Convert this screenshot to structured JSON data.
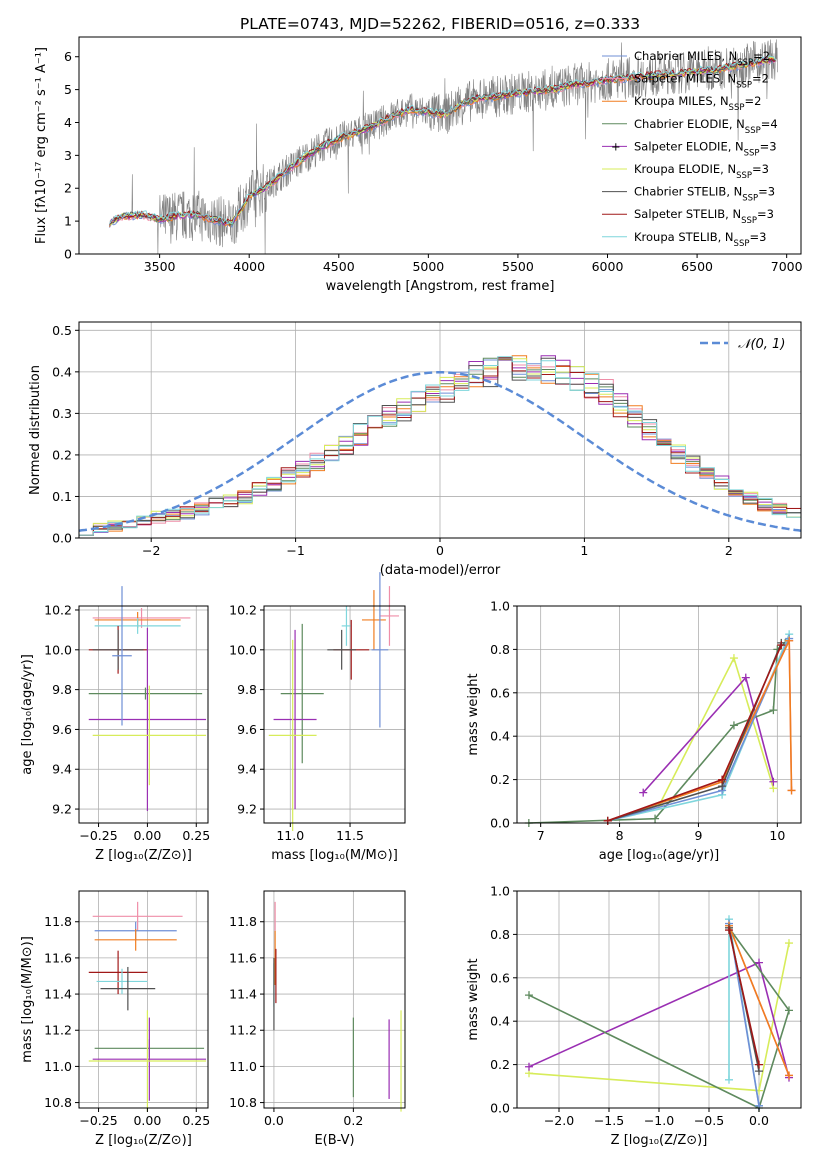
{
  "figure": {
    "title": "PLATE=0743, MJD=52262, FIBERID=0516, z=0.333"
  },
  "chart_data": [
    {
      "id": "spectrum",
      "type": "line",
      "xlabel": "wavelength [Angstrom, rest frame]",
      "ylabel": "Flux [fλ10⁻¹⁷ erg cm⁻² s⁻¹ A⁻¹]",
      "xlim": [
        3050,
        7080
      ],
      "ylim": [
        0,
        6.6
      ],
      "xticks": [
        3500,
        4000,
        4500,
        5000,
        5500,
        6000,
        6500,
        7000
      ],
      "yticks": [
        0,
        1,
        2,
        3,
        4,
        5,
        6
      ],
      "data_color": "#808080",
      "continuum": {
        "x": [
          3220,
          3300,
          3400,
          3500,
          3600,
          3700,
          3800,
          3900,
          4000,
          4100,
          4200,
          4300,
          4400,
          4500,
          4600,
          4700,
          4800,
          4900,
          5000,
          5100,
          5200,
          5300,
          5400,
          5500,
          5600,
          5700,
          5800,
          5900,
          6000,
          6100,
          6200,
          6300,
          6400,
          6500,
          6600,
          6700,
          6800,
          6900
        ],
        "y": [
          0.95,
          1.15,
          1.2,
          1.05,
          1.15,
          1.2,
          1.05,
          0.9,
          1.75,
          2.05,
          2.5,
          2.9,
          3.25,
          3.5,
          3.7,
          3.9,
          4.2,
          4.4,
          4.3,
          4.25,
          4.6,
          4.75,
          4.8,
          4.9,
          4.95,
          5.0,
          5.15,
          5.2,
          5.3,
          5.35,
          5.4,
          5.45,
          5.5,
          5.55,
          5.6,
          5.7,
          5.8,
          5.9
        ]
      },
      "legend": [
        {
          "name": "Chabrier MILES, N",
          "sub": "SSP",
          "n": "=2",
          "color": "#6f8fd6"
        },
        {
          "name": "Salpeter MILES, N",
          "sub": "SSP",
          "n": "=2",
          "color": "#ef8ea8"
        },
        {
          "name": "Kroupa MILES, N",
          "sub": "SSP",
          "n": "=2",
          "color": "#f07d20"
        },
        {
          "name": "Chabrier ELODIE, N",
          "sub": "SSP",
          "n": "=4",
          "color": "#5e8a5e"
        },
        {
          "name": "Salpeter ELODIE, N",
          "sub": "SSP",
          "n": "=3",
          "color": "#9a2fb3"
        },
        {
          "name": "Kroupa ELODIE, N",
          "sub": "SSP",
          "n": "=3",
          "color": "#d7ec5a"
        },
        {
          "name": "Chabrier STELIB, N",
          "sub": "SSP",
          "n": "=3",
          "color": "#505050"
        },
        {
          "name": "Salpeter STELIB, N",
          "sub": "SSP",
          "n": "=3",
          "color": "#a01818"
        },
        {
          "name": "Kroupa STELIB, N",
          "sub": "SSP",
          "n": "=3",
          "color": "#7fd6dc"
        }
      ]
    },
    {
      "id": "residuals",
      "type": "histogram",
      "xlabel": "(data-model)/error",
      "ylabel": "Normed distribution",
      "xlim": [
        -2.5,
        2.5
      ],
      "ylim": [
        0,
        0.52
      ],
      "xticks": [
        -2,
        -1,
        0,
        1,
        2
      ],
      "yticks": [
        0.0,
        0.1,
        0.2,
        0.3,
        0.4,
        0.5
      ],
      "legend_label": "𝒩(0, 1)",
      "gauss_color": "#5b8bd6",
      "bin_width": 0.1,
      "envelope": [
        0.02,
        0.025,
        0.03,
        0.035,
        0.04,
        0.05,
        0.055,
        0.06,
        0.07,
        0.08,
        0.09,
        0.1,
        0.115,
        0.13,
        0.15,
        0.165,
        0.185,
        0.2,
        0.225,
        0.25,
        0.27,
        0.29,
        0.31,
        0.33,
        0.345,
        0.36,
        0.375,
        0.39,
        0.4,
        0.41,
        0.415,
        0.41,
        0.405,
        0.4,
        0.39,
        0.37,
        0.35,
        0.32,
        0.29,
        0.26,
        0.23,
        0.2,
        0.175,
        0.15,
        0.13,
        0.11,
        0.095,
        0.08,
        0.07,
        0.06
      ]
    },
    {
      "id": "age-vs-z",
      "type": "scatter",
      "xlabel": "Z [log₁₀(Z/Z⊙)]",
      "ylabel": "age  [log₁₀(age/yr)]",
      "xlim": [
        -0.35,
        0.31
      ],
      "ylim": [
        9.13,
        10.22
      ],
      "xticks": [
        -0.25,
        0.0,
        0.25
      ],
      "yticks": [
        9.2,
        9.4,
        9.6,
        9.8,
        10.0,
        10.2
      ],
      "points": [
        {
          "x": -0.03,
          "y": 10.16,
          "xerr": 0.25,
          "yerr": 0.05,
          "color": "#ef8ea8"
        },
        {
          "x": -0.05,
          "y": 10.15,
          "xerr": 0.22,
          "yerr": 0.04,
          "color": "#f07d20"
        },
        {
          "x": -0.05,
          "y": 10.12,
          "xerr": 0.22,
          "yerr": 0.04,
          "color": "#7fd6dc"
        },
        {
          "x": -0.15,
          "y": 10.0,
          "xerr": 0.15,
          "yerr": 0.12,
          "color": "#a01818"
        },
        {
          "x": -0.15,
          "y": 10.0,
          "xerr": 0.13,
          "yerr": 0.1,
          "color": "#505050"
        },
        {
          "x": -0.01,
          "y": 9.78,
          "xerr": 0.29,
          "yerr": 0.03,
          "color": "#5e8a5e"
        },
        {
          "x": 0.0,
          "y": 9.65,
          "xerr": 0.3,
          "yerr": 0.46,
          "color": "#9a2fb3"
        },
        {
          "x": 0.01,
          "y": 9.57,
          "xerr": 0.29,
          "yerr": 0.25,
          "color": "#d7ec5a"
        },
        {
          "x": -0.13,
          "y": 9.97,
          "xerr": 0.05,
          "yerr": 0.35,
          "color": "#6f8fd6"
        }
      ]
    },
    {
      "id": "age-vs-mass",
      "type": "scatter",
      "xlabel": "mass [log₁₀(M/M⊙)]",
      "ylabel": "",
      "xlim": [
        10.78,
        11.96
      ],
      "ylim": [
        9.13,
        10.22
      ],
      "xticks": [
        11.0,
        11.5
      ],
      "yticks": [
        9.2,
        9.4,
        9.6,
        9.8,
        10.0,
        10.2
      ],
      "points": [
        {
          "x": 11.83,
          "y": 10.17,
          "xerr": 0.08,
          "yerr": 0.15,
          "color": "#ef8ea8"
        },
        {
          "x": 11.7,
          "y": 10.15,
          "xerr": 0.1,
          "yerr": 0.15,
          "color": "#f07d20"
        },
        {
          "x": 11.75,
          "y": 10.0,
          "xerr": 0.07,
          "yerr": 0.39,
          "color": "#6f8fd6"
        },
        {
          "x": 11.47,
          "y": 10.12,
          "xerr": 0.04,
          "yerr": 0.1,
          "color": "#7fd6dc"
        },
        {
          "x": 11.51,
          "y": 10.0,
          "xerr": 0.15,
          "yerr": 0.15,
          "color": "#a01818"
        },
        {
          "x": 11.43,
          "y": 10.0,
          "xerr": 0.12,
          "yerr": 0.1,
          "color": "#505050"
        },
        {
          "x": 11.1,
          "y": 9.78,
          "xerr": 0.18,
          "yerr": 0.35,
          "color": "#5e8a5e"
        },
        {
          "x": 11.04,
          "y": 9.65,
          "xerr": 0.18,
          "yerr": 0.45,
          "color": "#9a2fb3"
        },
        {
          "x": 11.02,
          "y": 9.57,
          "xerr": 0.2,
          "yerr": 0.48,
          "color": "#d7ec5a"
        }
      ]
    },
    {
      "id": "weight-vs-age",
      "type": "line",
      "xlabel": "age  [log₁₀(age/yr)]",
      "ylabel": "mass weight",
      "xlim": [
        6.7,
        10.3
      ],
      "ylim": [
        0,
        1.0
      ],
      "xticks": [
        7,
        8,
        9,
        10
      ],
      "yticks": [
        0.0,
        0.2,
        0.4,
        0.6,
        0.8,
        1.0
      ],
      "series": [
        {
          "color": "#d7ec5a",
          "x": [
            8.5,
            9.45,
            9.95
          ],
          "y": [
            0.08,
            0.76,
            0.16
          ]
        },
        {
          "color": "#9a2fb3",
          "x": [
            8.3,
            9.6,
            9.95
          ],
          "y": [
            0.14,
            0.67,
            0.19
          ]
        },
        {
          "color": "#5e8a5e",
          "x": [
            6.85,
            8.45,
            9.45,
            9.95,
            10.0,
            10.1
          ],
          "y": [
            0.0,
            0.02,
            0.45,
            0.52,
            0.8,
            0.83
          ]
        },
        {
          "color": "#7fd6dc",
          "x": [
            7.85,
            9.3,
            10.15
          ],
          "y": [
            0.01,
            0.13,
            0.87
          ]
        },
        {
          "color": "#6f8fd6",
          "x": [
            7.85,
            9.3,
            10.15
          ],
          "y": [
            0.01,
            0.15,
            0.85
          ]
        },
        {
          "color": "#ef8ea8",
          "x": [
            7.85,
            9.3,
            10.15,
            10.18
          ],
          "y": [
            0.01,
            0.2,
            0.84,
            0.15
          ]
        },
        {
          "color": "#f07d20",
          "x": [
            7.85,
            9.3,
            10.15,
            10.18
          ],
          "y": [
            0.01,
            0.19,
            0.84,
            0.15
          ]
        },
        {
          "color": "#505050",
          "x": [
            7.85,
            9.3,
            10.05
          ],
          "y": [
            0.01,
            0.17,
            0.83
          ]
        },
        {
          "color": "#a01818",
          "x": [
            7.85,
            9.3,
            10.05
          ],
          "y": [
            0.01,
            0.2,
            0.82
          ]
        }
      ]
    },
    {
      "id": "mass-vs-z",
      "type": "scatter",
      "xlabel": "Z [log₁₀(Z/Z⊙)]",
      "ylabel": "mass [log₁₀(M/M⊙)]",
      "xlim": [
        -0.35,
        0.31
      ],
      "ylim": [
        10.77,
        11.97
      ],
      "xticks": [
        -0.25,
        0.0,
        0.25
      ],
      "yticks": [
        10.8,
        11.0,
        11.2,
        11.4,
        11.6,
        11.8
      ],
      "points": [
        {
          "x": -0.05,
          "y": 11.83,
          "xerr": 0.23,
          "yerr": 0.08,
          "color": "#ef8ea8"
        },
        {
          "x": -0.06,
          "y": 11.75,
          "xerr": 0.21,
          "yerr": 0.05,
          "color": "#6f8fd6"
        },
        {
          "x": -0.06,
          "y": 11.7,
          "xerr": 0.21,
          "yerr": 0.06,
          "color": "#f07d20"
        },
        {
          "x": -0.15,
          "y": 11.52,
          "xerr": 0.15,
          "yerr": 0.12,
          "color": "#a01818"
        },
        {
          "x": -0.13,
          "y": 11.47,
          "xerr": 0.13,
          "yerr": 0.07,
          "color": "#7fd6dc"
        },
        {
          "x": -0.1,
          "y": 11.43,
          "xerr": 0.14,
          "yerr": 0.12,
          "color": "#505050"
        },
        {
          "x": 0.01,
          "y": 11.1,
          "xerr": 0.28,
          "yerr": 0.05,
          "color": "#5e8a5e"
        },
        {
          "x": 0.01,
          "y": 11.04,
          "xerr": 0.29,
          "yerr": 0.23,
          "color": "#9a2fb3"
        },
        {
          "x": 0.0,
          "y": 11.03,
          "xerr": 0.3,
          "yerr": 0.28,
          "color": "#d7ec5a"
        }
      ]
    },
    {
      "id": "mass-vs-ebv",
      "type": "scatter",
      "xlabel": "E(B-V)",
      "ylabel": "",
      "xlim": [
        -0.025,
        0.33
      ],
      "ylim": [
        10.77,
        11.97
      ],
      "xticks": [
        0.0,
        0.2
      ],
      "yticks": [
        10.8,
        11.0,
        11.2,
        11.4,
        11.6,
        11.8
      ],
      "points": [
        {
          "x": 0.003,
          "y": 11.83,
          "xerr": 0.0,
          "yerr": 0.08,
          "color": "#ef8ea8"
        },
        {
          "x": 0.003,
          "y": 11.6,
          "xerr": 0.0,
          "yerr": 0.15,
          "color": "#f07d20"
        },
        {
          "x": 0.005,
          "y": 11.5,
          "xerr": 0.0,
          "yerr": 0.15,
          "color": "#a01818"
        },
        {
          "x": 0.0,
          "y": 11.45,
          "xerr": 0.0,
          "yerr": 0.12,
          "color": "#7fd6dc"
        },
        {
          "x": 0.0,
          "y": 11.4,
          "xerr": 0.0,
          "yerr": 0.2,
          "color": "#505050"
        },
        {
          "x": 0.2,
          "y": 11.05,
          "xerr": 0.0,
          "yerr": 0.22,
          "color": "#5e8a5e"
        },
        {
          "x": 0.29,
          "y": 11.04,
          "xerr": 0.0,
          "yerr": 0.22,
          "color": "#9a2fb3"
        },
        {
          "x": 0.32,
          "y": 11.03,
          "xerr": 0.0,
          "yerr": 0.28,
          "color": "#d7ec5a"
        }
      ]
    },
    {
      "id": "weight-vs-z",
      "type": "line",
      "xlabel": "Z [log₁₀(Z/Z⊙)]",
      "ylabel": "mass weight",
      "xlim": [
        -2.42,
        0.42
      ],
      "ylim": [
        0,
        1.0
      ],
      "xticks": [
        -2.0,
        -1.5,
        -1.0,
        -0.5,
        0.0
      ],
      "yticks": [
        0.0,
        0.2,
        0.4,
        0.6,
        0.8,
        1.0
      ],
      "series": [
        {
          "color": "#d7ec5a",
          "x": [
            -2.3,
            0.0,
            0.3
          ],
          "y": [
            0.16,
            0.08,
            0.76
          ]
        },
        {
          "color": "#9a2fb3",
          "x": [
            -2.3,
            0.0,
            0.3
          ],
          "y": [
            0.19,
            0.67,
            0.14
          ]
        },
        {
          "color": "#5e8a5e",
          "x": [
            -2.3,
            0.0,
            0.3,
            -0.3
          ],
          "y": [
            0.52,
            0.0,
            0.45,
            0.83
          ]
        },
        {
          "color": "#7fd6dc",
          "x": [
            -0.3,
            -0.3,
            0.0
          ],
          "y": [
            0.13,
            0.87,
            0.01
          ]
        },
        {
          "color": "#6f8fd6",
          "x": [
            -0.3,
            0.0
          ],
          "y": [
            0.85,
            0.01
          ]
        },
        {
          "color": "#ef8ea8",
          "x": [
            -0.3,
            0.3
          ],
          "y": [
            0.84,
            0.15
          ]
        },
        {
          "color": "#f07d20",
          "x": [
            -0.3,
            0.3
          ],
          "y": [
            0.84,
            0.15
          ]
        },
        {
          "color": "#505050",
          "x": [
            -0.3,
            0.0
          ],
          "y": [
            0.83,
            0.17
          ]
        },
        {
          "color": "#a01818",
          "x": [
            -0.3,
            0.0
          ],
          "y": [
            0.82,
            0.2
          ]
        }
      ]
    }
  ]
}
